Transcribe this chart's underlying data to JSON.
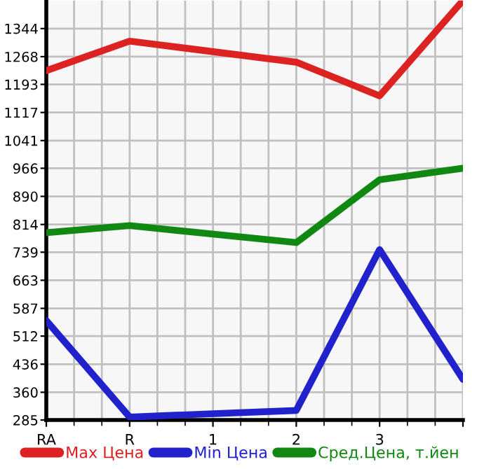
{
  "chart_data": {
    "type": "line",
    "categories": [
      "RA",
      "R",
      "1",
      "2",
      "3",
      null
    ],
    "series": [
      {
        "name": "Max Цена",
        "color": "#dd2222",
        "values": [
          1230,
          1310,
          null,
          1253,
          1162,
          1420
        ]
      },
      {
        "name": "Min Цена",
        "color": "#2222cc",
        "values": [
          554,
          293,
          null,
          311,
          746,
          395
        ]
      },
      {
        "name": "Сред.Цена, т.йен",
        "color": "#118811",
        "values": [
          792,
          811,
          null,
          765,
          935,
          966
        ]
      }
    ],
    "ylim": [
      285,
      1420
    ],
    "yticks": [
      285,
      360,
      436,
      512,
      587,
      663,
      739,
      814,
      890,
      966,
      1041,
      1117,
      1193,
      1268,
      1344
    ],
    "grid": true,
    "legend": "bottom",
    "marker": "none",
    "line_style": "solid"
  }
}
